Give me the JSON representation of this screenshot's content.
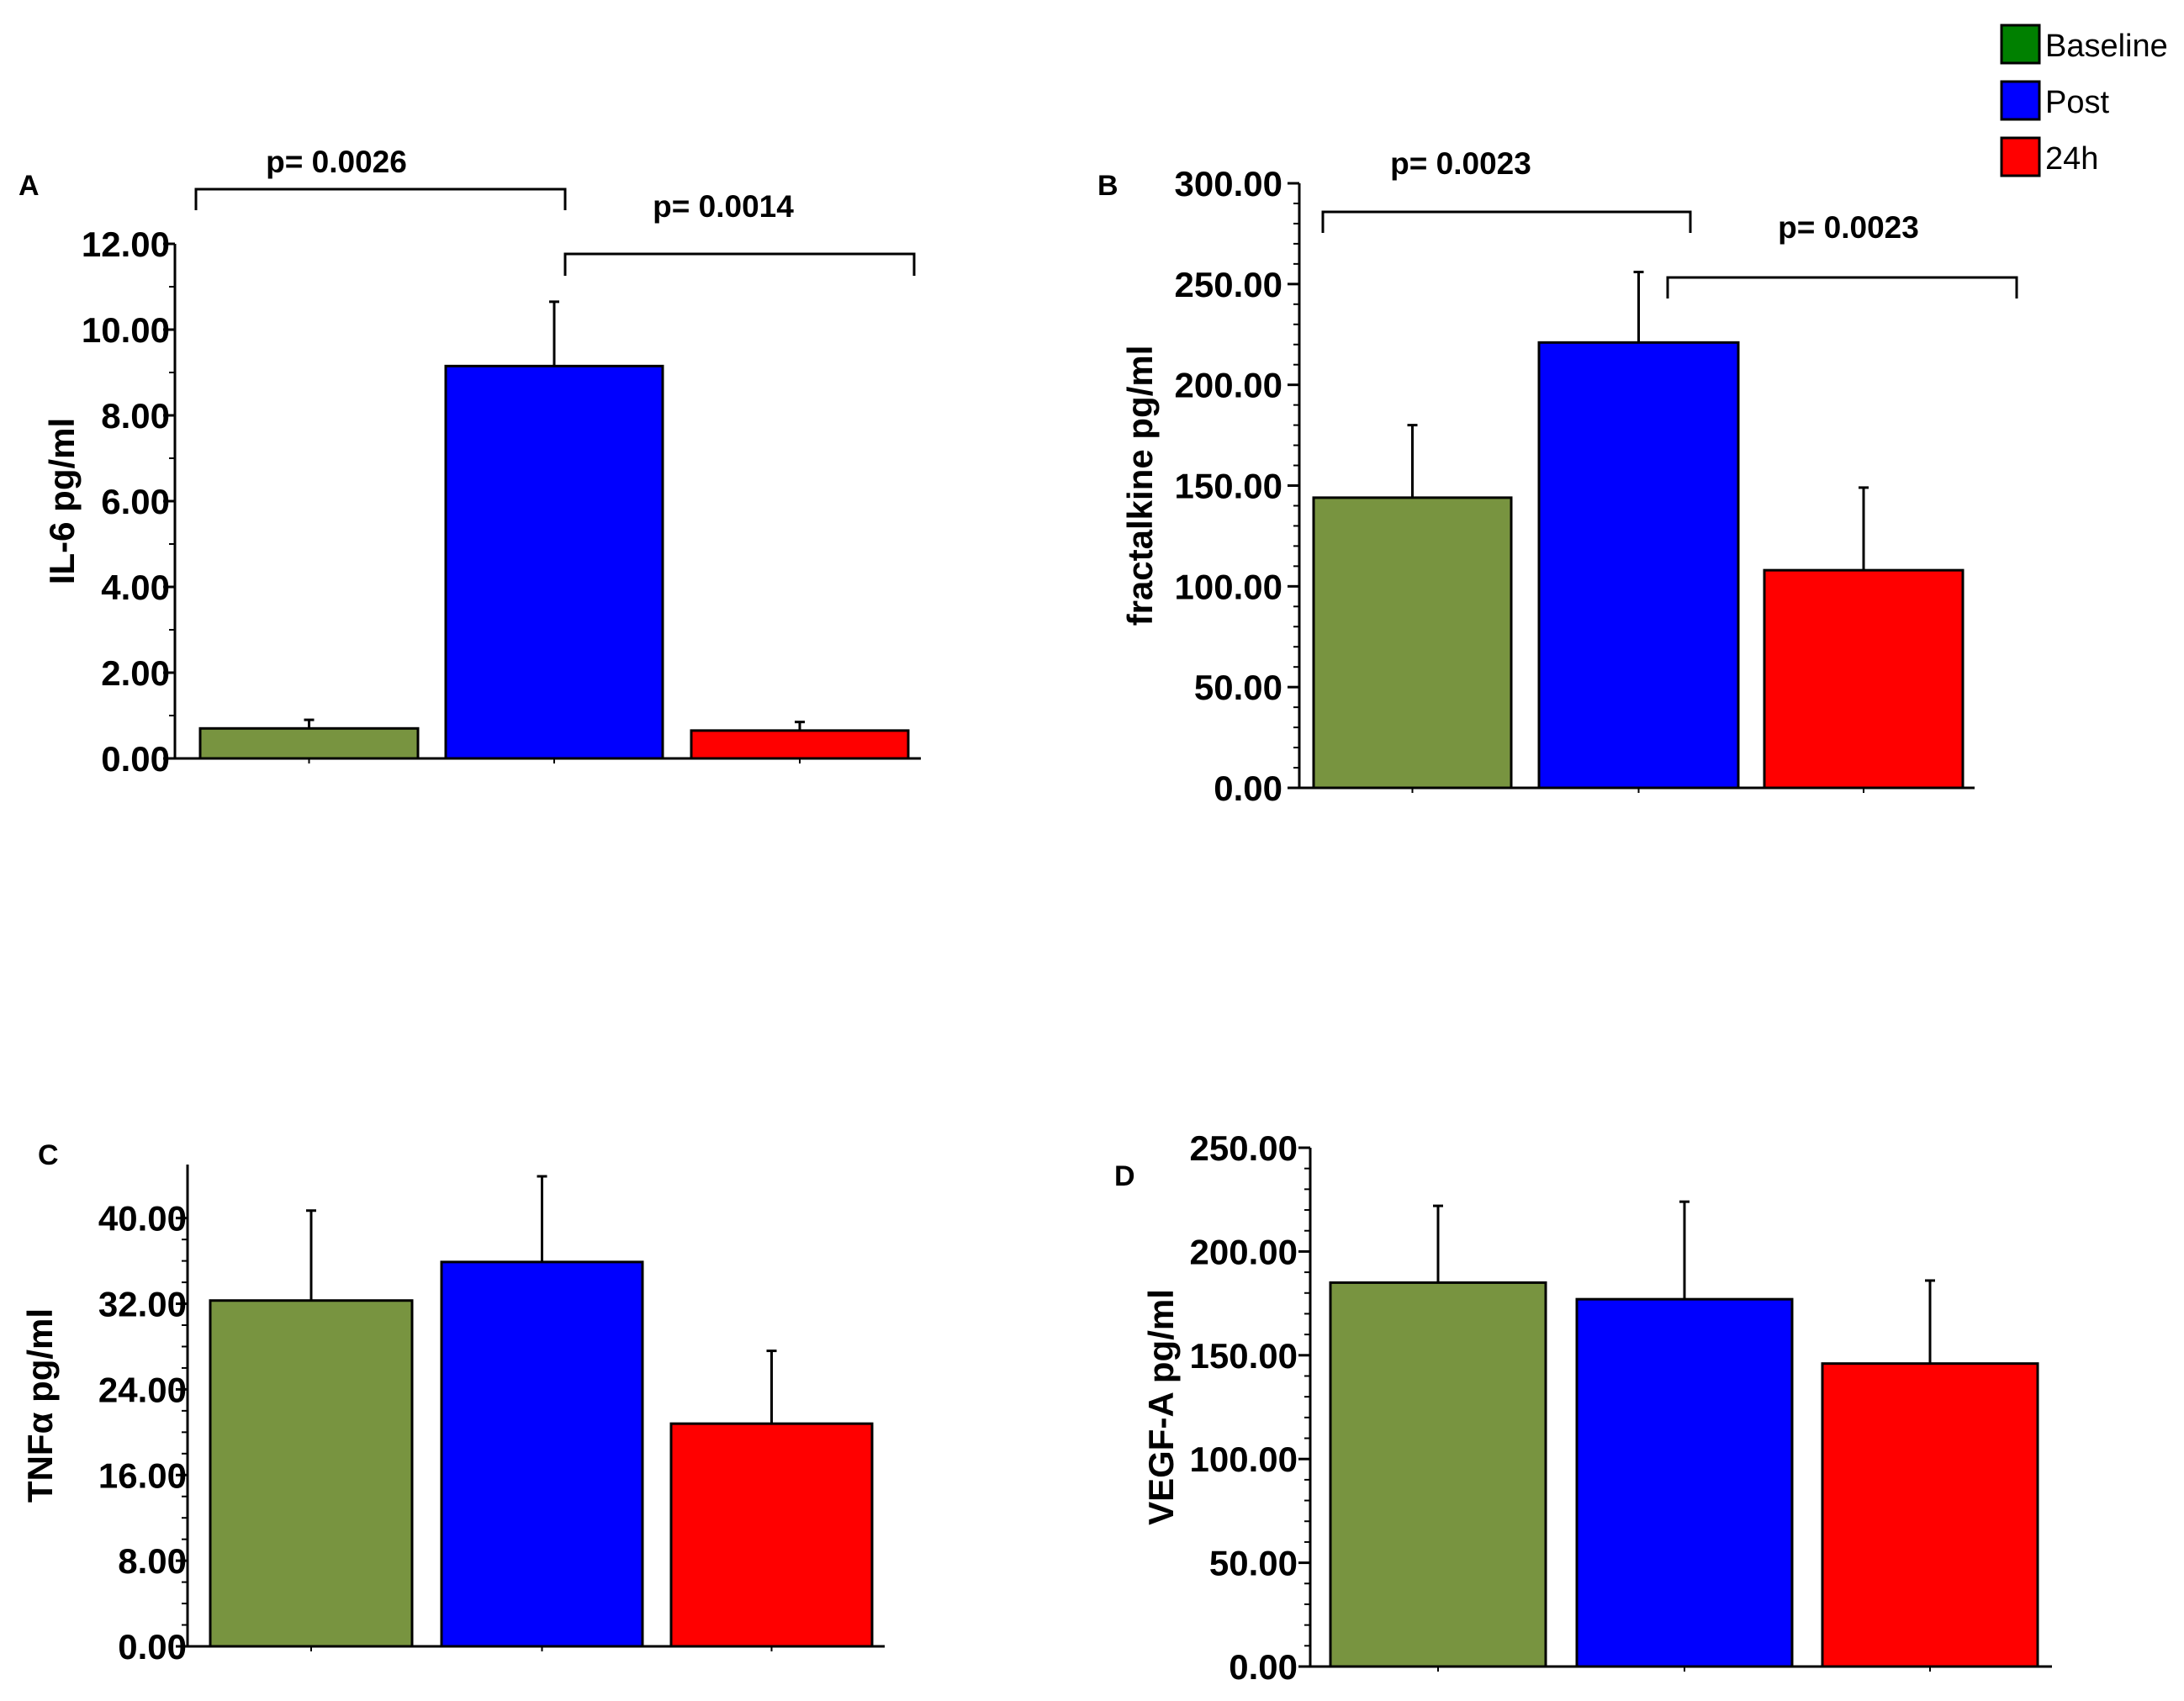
{
  "legend": [
    {
      "label": "Baseline",
      "color": "#008000"
    },
    {
      "label": "Post",
      "color": "#0000ff"
    },
    {
      "label": "24h",
      "color": "#ff0000"
    }
  ],
  "bar_colors": [
    "#789440",
    "#0000ff",
    "#ff0000"
  ],
  "chart_data": [
    {
      "type": "bar",
      "panel": "A",
      "ylabel": "IL-6 pg/ml",
      "categories": [
        "Baseline",
        "Post",
        "24h"
      ],
      "values": [
        0.7,
        9.15,
        0.65
      ],
      "errors": [
        0.2,
        1.5,
        0.2
      ],
      "ylim": [
        0,
        12
      ],
      "yticks": [
        0,
        2,
        4,
        6,
        8,
        10,
        12
      ],
      "ytick_labels": [
        "0.00",
        "2.00",
        "4.00",
        "6.00",
        "8.00",
        "10.00",
        "12.00"
      ],
      "significance": [
        {
          "from": 0,
          "to": 1,
          "label": "p= 0.0026"
        },
        {
          "from": 1,
          "to": 2,
          "label": "p= 0.0014"
        }
      ]
    },
    {
      "type": "bar",
      "panel": "B",
      "ylabel": "fractalkine pg/ml",
      "categories": [
        "Baseline",
        "Post",
        "24h"
      ],
      "values": [
        144,
        221,
        108
      ],
      "errors": [
        36,
        35,
        41
      ],
      "ylim": [
        0,
        300
      ],
      "yticks": [
        0,
        50,
        100,
        150,
        200,
        250,
        300
      ],
      "ytick_labels": [
        "0.00",
        "50.00",
        "100.00",
        "150.00",
        "200.00",
        "250.00",
        "300.00"
      ],
      "significance": [
        {
          "from": 0,
          "to": 1,
          "label": "p= 0.0023"
        },
        {
          "from": 1,
          "to": 2,
          "label": "p= 0.0023"
        }
      ]
    },
    {
      "type": "bar",
      "panel": "C",
      "ylabel": "TNFα  pg/ml",
      "categories": [
        "Baseline",
        "Post",
        "24h"
      ],
      "values": [
        32.3,
        35.9,
        20.8
      ],
      "errors": [
        8.4,
        8.0,
        6.8
      ],
      "ylim": [
        0,
        45
      ],
      "yticks": [
        0,
        8,
        16,
        24,
        32,
        40
      ],
      "ytick_labels": [
        "0.00",
        "8.00",
        "16.00",
        "24.00",
        "32.00",
        "40.00"
      ],
      "significance": []
    },
    {
      "type": "bar",
      "panel": "D",
      "ylabel": "VEGF-A pg/ml",
      "categories": [
        "Baseline",
        "Post",
        "24h"
      ],
      "values": [
        185,
        177,
        146
      ],
      "errors": [
        37,
        47,
        40
      ],
      "ylim": [
        0,
        250
      ],
      "yticks": [
        0,
        50,
        100,
        150,
        200,
        250
      ],
      "ytick_labels": [
        "0.00",
        "50.00",
        "100.00",
        "150.00",
        "200.00",
        "250.00"
      ],
      "significance": []
    }
  ]
}
